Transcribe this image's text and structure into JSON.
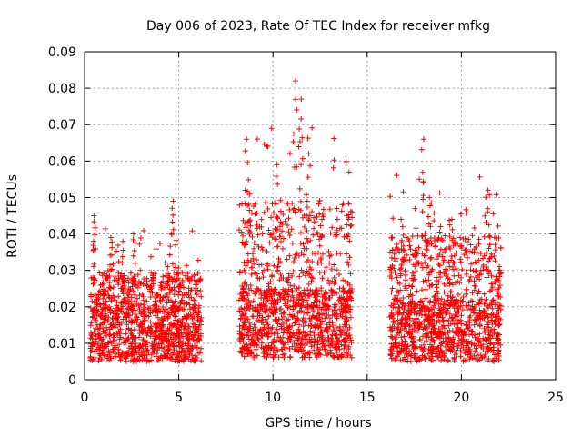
{
  "chart_data": {
    "type": "scatter",
    "title": "Day 006 of 2023, Rate Of TEC Index for receiver mfkg",
    "xlabel": "GPS time / hours",
    "ylabel": "ROTI / TECUs",
    "xlim": [
      0,
      25
    ],
    "ylim": [
      0,
      0.09
    ],
    "x_ticks": [
      "0",
      "5",
      "10",
      "15",
      "20",
      "25"
    ],
    "y_ticks": [
      "0",
      "0.01",
      "0.02",
      "0.03",
      "0.04",
      "0.05",
      "0.06",
      "0.07",
      "0.08",
      "0.09"
    ],
    "grid": true,
    "marker": "+",
    "color": "#ff0000",
    "segments": [
      {
        "x_range": [
          0.3,
          6.2
        ],
        "typical_range": [
          0.005,
          0.02
        ],
        "max": 0.049
      },
      {
        "x_range": [
          8.2,
          14.2
        ],
        "typical_range": [
          0.006,
          0.025
        ],
        "max": 0.082
      },
      {
        "x_range": [
          16.2,
          22.1
        ],
        "typical_range": [
          0.005,
          0.022
        ],
        "max": 0.066
      }
    ],
    "highlights": [
      {
        "x": 0.5,
        "y": 0.045
      },
      {
        "x": 1.4,
        "y": 0.039
      },
      {
        "x": 2.6,
        "y": 0.04
      },
      {
        "x": 4.7,
        "y": 0.049
      },
      {
        "x": 8.6,
        "y": 0.066
      },
      {
        "x": 10.2,
        "y": 0.059
      },
      {
        "x": 11.2,
        "y": 0.082
      },
      {
        "x": 11.5,
        "y": 0.077
      },
      {
        "x": 11.9,
        "y": 0.062
      },
      {
        "x": 12.6,
        "y": 0.044
      },
      {
        "x": 14.0,
        "y": 0.044
      },
      {
        "x": 16.8,
        "y": 0.044
      },
      {
        "x": 18.0,
        "y": 0.066
      },
      {
        "x": 18.3,
        "y": 0.05
      },
      {
        "x": 19.5,
        "y": 0.044
      },
      {
        "x": 21.4,
        "y": 0.052
      },
      {
        "x": 22.0,
        "y": 0.03
      }
    ]
  }
}
